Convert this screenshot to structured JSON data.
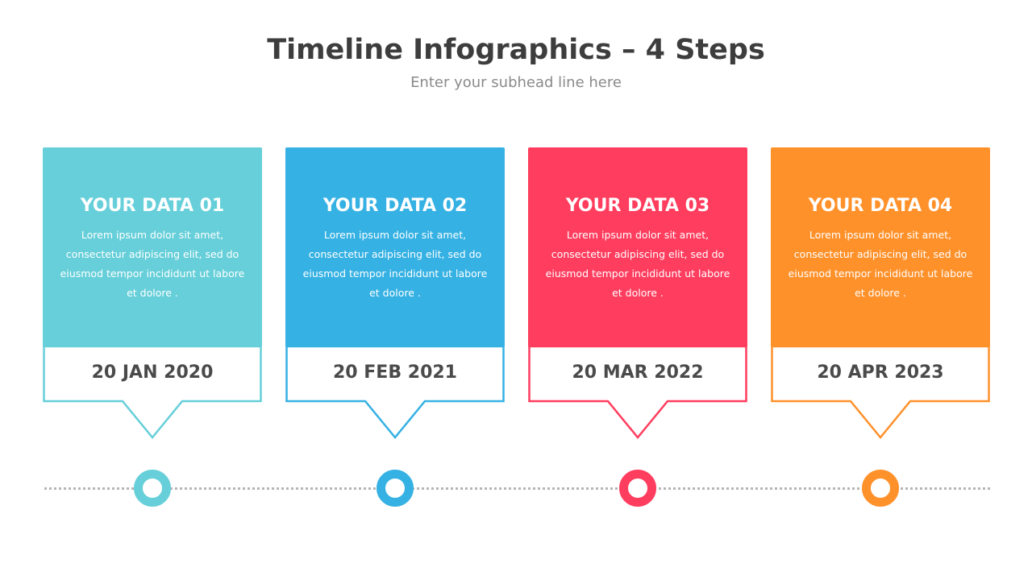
{
  "title": "Timeline Infographics – 4 Steps",
  "subtitle": "Enter your subhead line here",
  "steps": [
    {
      "heading": "YOUR DATA 01",
      "body": "Lorem ipsum dolor sit amet, consectetur  adipiscing elit, sed do eiusmod tempor incididunt ut labore et dolore .",
      "date": "20 JAN 2020",
      "color": "#66CFD9"
    },
    {
      "heading": "YOUR DATA 02",
      "body": "Lorem ipsum dolor sit amet, consectetur  adipiscing elit, sed do eiusmod tempor incididunt ut labore et dolore .",
      "date": "20 FEB 2021",
      "color": "#35B1E3"
    },
    {
      "heading": "YOUR DATA 03",
      "body": "Lorem ipsum dolor sit amet, consectetur  adipiscing elit, sed do eiusmod tempor incididunt ut labore et dolore .",
      "date": "20 MAR 2022",
      "color": "#FF3D5E"
    },
    {
      "heading": "YOUR DATA 04",
      "body": "Lorem ipsum dolor sit amet, consectetur  adipiscing elit, sed do eiusmod tempor incididunt ut labore et dolore .",
      "date": "20 APR 2023",
      "color": "#FF912B"
    }
  ]
}
